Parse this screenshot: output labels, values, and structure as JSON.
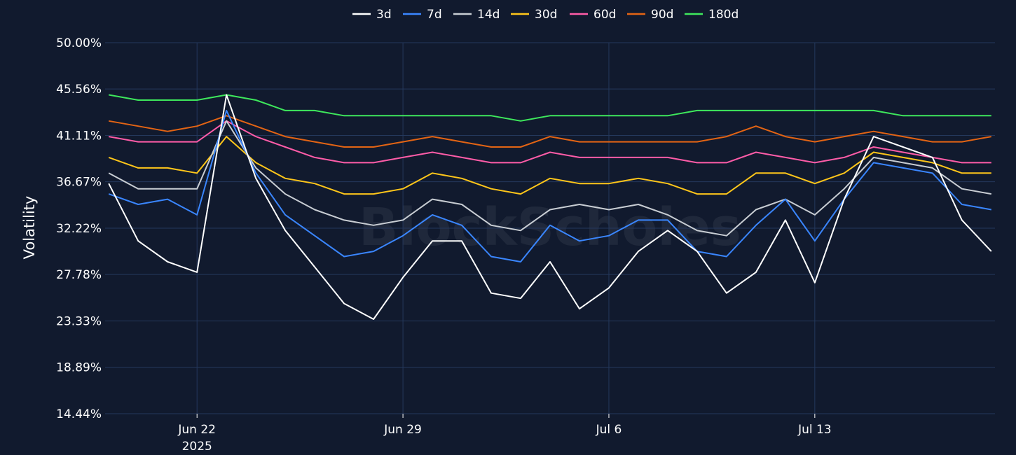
{
  "chart_data": {
    "type": "line",
    "ylabel": "Volatility",
    "watermark": "BlockScholes",
    "ylim": [
      14.44,
      50.0
    ],
    "y_ticks": [
      "14.44%",
      "18.89%",
      "23.33%",
      "27.78%",
      "32.22%",
      "36.67%",
      "41.11%",
      "45.56%",
      "50.00%"
    ],
    "x_ticks": [
      {
        "date": "2025-06-22",
        "label": "Jun 22",
        "sublabel": "2025"
      },
      {
        "date": "2025-06-29",
        "label": "Jun 29",
        "sublabel": ""
      },
      {
        "date": "2025-07-06",
        "label": "Jul 6",
        "sublabel": ""
      },
      {
        "date": "2025-07-13",
        "label": "Jul 13",
        "sublabel": ""
      }
    ],
    "xlim": [
      "2025-06-18T21:00",
      "2025-07-19T03:00"
    ],
    "grid": true,
    "legend_position": "top",
    "x": [
      "2025-06-19",
      "2025-06-20",
      "2025-06-21",
      "2025-06-22",
      "2025-06-23",
      "2025-06-24",
      "2025-06-25",
      "2025-06-26",
      "2025-06-27",
      "2025-06-28",
      "2025-06-29",
      "2025-06-30",
      "2025-07-01",
      "2025-07-02",
      "2025-07-03",
      "2025-07-04",
      "2025-07-05",
      "2025-07-06",
      "2025-07-07",
      "2025-07-08",
      "2025-07-09",
      "2025-07-10",
      "2025-07-11",
      "2025-07-12",
      "2025-07-13",
      "2025-07-14",
      "2025-07-15",
      "2025-07-16",
      "2025-07-17",
      "2025-07-18",
      "2025-07-19"
    ],
    "series": [
      {
        "name": "3d",
        "color": "#ffffff",
        "values": [
          36.5,
          31.0,
          29.0,
          28.0,
          45.0,
          37.0,
          32.0,
          28.5,
          25.0,
          23.5,
          27.5,
          31.0,
          31.0,
          26.0,
          25.5,
          29.0,
          24.5,
          26.5,
          30.0,
          32.0,
          30.0,
          26.0,
          28.0,
          33.0,
          27.0,
          35.0,
          41.0,
          40.0,
          39.0,
          33.0,
          30.0
        ]
      },
      {
        "name": "7d",
        "color": "#3a86ff",
        "values": [
          35.5,
          34.5,
          35.0,
          33.5,
          43.5,
          37.5,
          33.5,
          31.5,
          29.5,
          30.0,
          31.5,
          33.5,
          32.5,
          29.5,
          29.0,
          32.5,
          31.0,
          31.5,
          33.0,
          33.0,
          30.0,
          29.5,
          32.5,
          35.0,
          31.0,
          35.0,
          38.5,
          38.0,
          37.5,
          34.5,
          34.0
        ]
      },
      {
        "name": "14d",
        "color": "#c8cdd3",
        "values": [
          37.5,
          36.0,
          36.0,
          36.0,
          42.5,
          38.0,
          35.5,
          34.0,
          33.0,
          32.5,
          33.0,
          35.0,
          34.5,
          32.5,
          32.0,
          34.0,
          34.5,
          34.0,
          34.5,
          33.5,
          32.0,
          31.5,
          34.0,
          35.0,
          33.5,
          36.0,
          39.0,
          38.5,
          38.0,
          36.0,
          35.5
        ]
      },
      {
        "name": "30d",
        "color": "#ffc61a",
        "values": [
          39.0,
          38.0,
          38.0,
          37.5,
          41.0,
          38.5,
          37.0,
          36.5,
          35.5,
          35.5,
          36.0,
          37.5,
          37.0,
          36.0,
          35.5,
          37.0,
          36.5,
          36.5,
          37.0,
          36.5,
          35.5,
          35.5,
          37.5,
          37.5,
          36.5,
          37.5,
          39.5,
          39.0,
          38.5,
          37.5,
          37.5
        ]
      },
      {
        "name": "60d",
        "color": "#ff5ca8",
        "values": [
          41.0,
          40.5,
          40.5,
          40.5,
          42.5,
          41.0,
          40.0,
          39.0,
          38.5,
          38.5,
          39.0,
          39.5,
          39.0,
          38.5,
          38.5,
          39.5,
          39.0,
          39.0,
          39.0,
          39.0,
          38.5,
          38.5,
          39.5,
          39.0,
          38.5,
          39.0,
          40.0,
          39.5,
          39.0,
          38.5,
          38.5
        ]
      },
      {
        "name": "90d",
        "color": "#e36414",
        "values": [
          42.5,
          42.0,
          41.5,
          42.0,
          43.0,
          42.0,
          41.0,
          40.5,
          40.0,
          40.0,
          40.5,
          41.0,
          40.5,
          40.0,
          40.0,
          41.0,
          40.5,
          40.5,
          40.5,
          40.5,
          40.5,
          41.0,
          42.0,
          41.0,
          40.5,
          41.0,
          41.5,
          41.0,
          40.5,
          40.5,
          41.0
        ]
      },
      {
        "name": "180d",
        "color": "#3ee85c",
        "values": [
          45.0,
          44.5,
          44.5,
          44.5,
          45.0,
          44.5,
          43.5,
          43.5,
          43.0,
          43.0,
          43.0,
          43.0,
          43.0,
          43.0,
          42.5,
          43.0,
          43.0,
          43.0,
          43.0,
          43.0,
          43.5,
          43.5,
          43.5,
          43.5,
          43.5,
          43.5,
          43.5,
          43.0,
          43.0,
          43.0,
          43.0
        ]
      }
    ]
  }
}
